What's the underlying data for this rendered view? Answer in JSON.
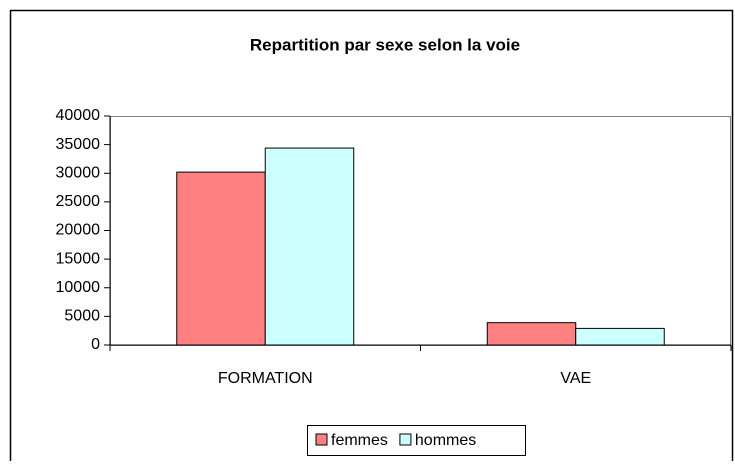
{
  "chart_data": {
    "type": "bar",
    "title": "Repartition par sexe selon la voie",
    "categories": [
      "FORMATION",
      "VAE"
    ],
    "series": [
      {
        "name": "femmes",
        "color": "#ff8080",
        "values": [
          30200,
          3900
        ]
      },
      {
        "name": "hommes",
        "color": "#ccffff",
        "values": [
          34400,
          2900
        ]
      }
    ],
    "ylim": [
      0,
      40000
    ],
    "yticks": [
      0,
      5000,
      10000,
      15000,
      20000,
      25000,
      30000,
      35000,
      40000
    ],
    "legend": "bottom"
  }
}
